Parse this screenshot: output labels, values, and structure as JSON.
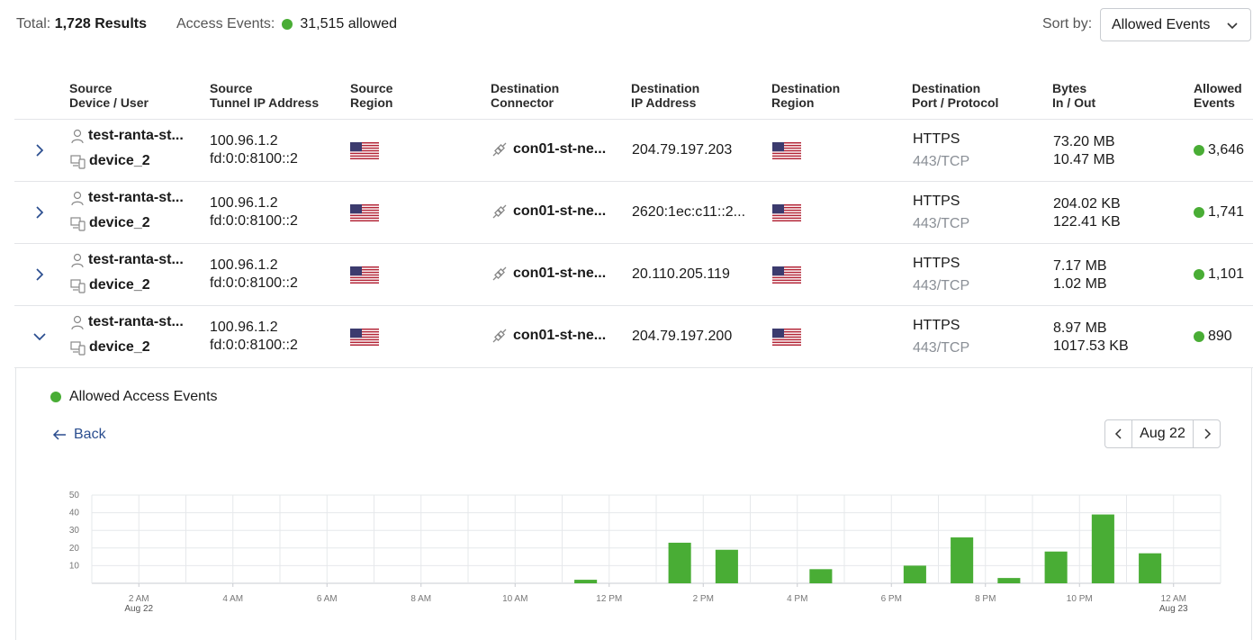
{
  "summary": {
    "total_label": "Total:",
    "total_value": "1,728 Results",
    "access_label": "Access Events:",
    "access_value": "31,515 allowed",
    "sort_label": "Sort by:",
    "sort_value": "Allowed Events"
  },
  "columns": [
    {
      "line1": "Source",
      "line2": "Device / User"
    },
    {
      "line1": "Source",
      "line2": "Tunnel IP Address"
    },
    {
      "line1": "Source",
      "line2": "Region"
    },
    {
      "line1": "Destination",
      "line2": "Connector"
    },
    {
      "line1": "Destination",
      "line2": "IP Address"
    },
    {
      "line1": "Destination",
      "line2": "Region"
    },
    {
      "line1": "Destination",
      "line2": "Port / Protocol"
    },
    {
      "line1": "Bytes",
      "line2": "In / Out"
    },
    {
      "line1": "Allowed",
      "line2": "Events"
    }
  ],
  "rows": [
    {
      "expanded": false,
      "user": "test-ranta-st...",
      "device": "device_2",
      "ipv4": "100.96.1.2",
      "ipv6": "fd:0:0:8100::2",
      "connector": "con01-st-ne...",
      "dest_ip": "204.79.197.203",
      "protocol": "HTTPS",
      "port": "443/TCP",
      "bytes_in": "73.20 MB",
      "bytes_out": "10.47 MB",
      "events": "3,646"
    },
    {
      "expanded": false,
      "user": "test-ranta-st...",
      "device": "device_2",
      "ipv4": "100.96.1.2",
      "ipv6": "fd:0:0:8100::2",
      "connector": "con01-st-ne...",
      "dest_ip": "2620:1ec:c11::2...",
      "protocol": "HTTPS",
      "port": "443/TCP",
      "bytes_in": "204.02 KB",
      "bytes_out": "122.41 KB",
      "events": "1,741"
    },
    {
      "expanded": false,
      "user": "test-ranta-st...",
      "device": "device_2",
      "ipv4": "100.96.1.2",
      "ipv6": "fd:0:0:8100::2",
      "connector": "con01-st-ne...",
      "dest_ip": "20.110.205.119",
      "protocol": "HTTPS",
      "port": "443/TCP",
      "bytes_in": "7.17 MB",
      "bytes_out": "1.02 MB",
      "events": "1,101"
    },
    {
      "expanded": true,
      "user": "test-ranta-st...",
      "device": "device_2",
      "ipv4": "100.96.1.2",
      "ipv6": "fd:0:0:8100::2",
      "connector": "con01-st-ne...",
      "dest_ip": "204.79.197.200",
      "protocol": "HTTPS",
      "port": "443/TCP",
      "bytes_in": "8.97 MB",
      "bytes_out": "1017.53 KB",
      "events": "890"
    }
  ],
  "detail": {
    "legend": "Allowed Access Events",
    "back_label": "Back",
    "date": "Aug 22"
  },
  "colors": {
    "allowed": "#49ad35",
    "link": "#2a4d8f"
  },
  "icons": {
    "expander_collapsed": "chevron-right-icon",
    "expander_expanded": "chevron-down-icon",
    "user": "user-icon",
    "device": "device-icon",
    "connector": "connector-plug-icon",
    "flag": "us-flag-icon"
  },
  "chart_data": {
    "type": "bar",
    "series": [
      {
        "name": "Allowed Access Events",
        "color": "#49ad35"
      }
    ],
    "ylim": [
      0,
      50
    ],
    "yticks": [
      "10",
      "20",
      "30",
      "40",
      "50"
    ],
    "xrange_hours": [
      1,
      25
    ],
    "xticks": [
      {
        "hour": 2,
        "label": "2 AM",
        "sub": "Aug 22"
      },
      {
        "hour": 4,
        "label": "4 AM",
        "sub": ""
      },
      {
        "hour": 6,
        "label": "6 AM",
        "sub": ""
      },
      {
        "hour": 8,
        "label": "8 AM",
        "sub": ""
      },
      {
        "hour": 10,
        "label": "10 AM",
        "sub": ""
      },
      {
        "hour": 12,
        "label": "12 PM",
        "sub": ""
      },
      {
        "hour": 14,
        "label": "2 PM",
        "sub": ""
      },
      {
        "hour": 16,
        "label": "4 PM",
        "sub": ""
      },
      {
        "hour": 18,
        "label": "6 PM",
        "sub": ""
      },
      {
        "hour": 20,
        "label": "8 PM",
        "sub": ""
      },
      {
        "hour": 22,
        "label": "10 PM",
        "sub": ""
      },
      {
        "hour": 24,
        "label": "12 AM",
        "sub": "Aug 23"
      }
    ],
    "bars": [
      {
        "hour": 11,
        "value": 2
      },
      {
        "hour": 13,
        "value": 23
      },
      {
        "hour": 14,
        "value": 19
      },
      {
        "hour": 16,
        "value": 8
      },
      {
        "hour": 18,
        "value": 10
      },
      {
        "hour": 19,
        "value": 26
      },
      {
        "hour": 20,
        "value": 3
      },
      {
        "hour": 21,
        "value": 18
      },
      {
        "hour": 22,
        "value": 39
      },
      {
        "hour": 23,
        "value": 17
      }
    ]
  }
}
